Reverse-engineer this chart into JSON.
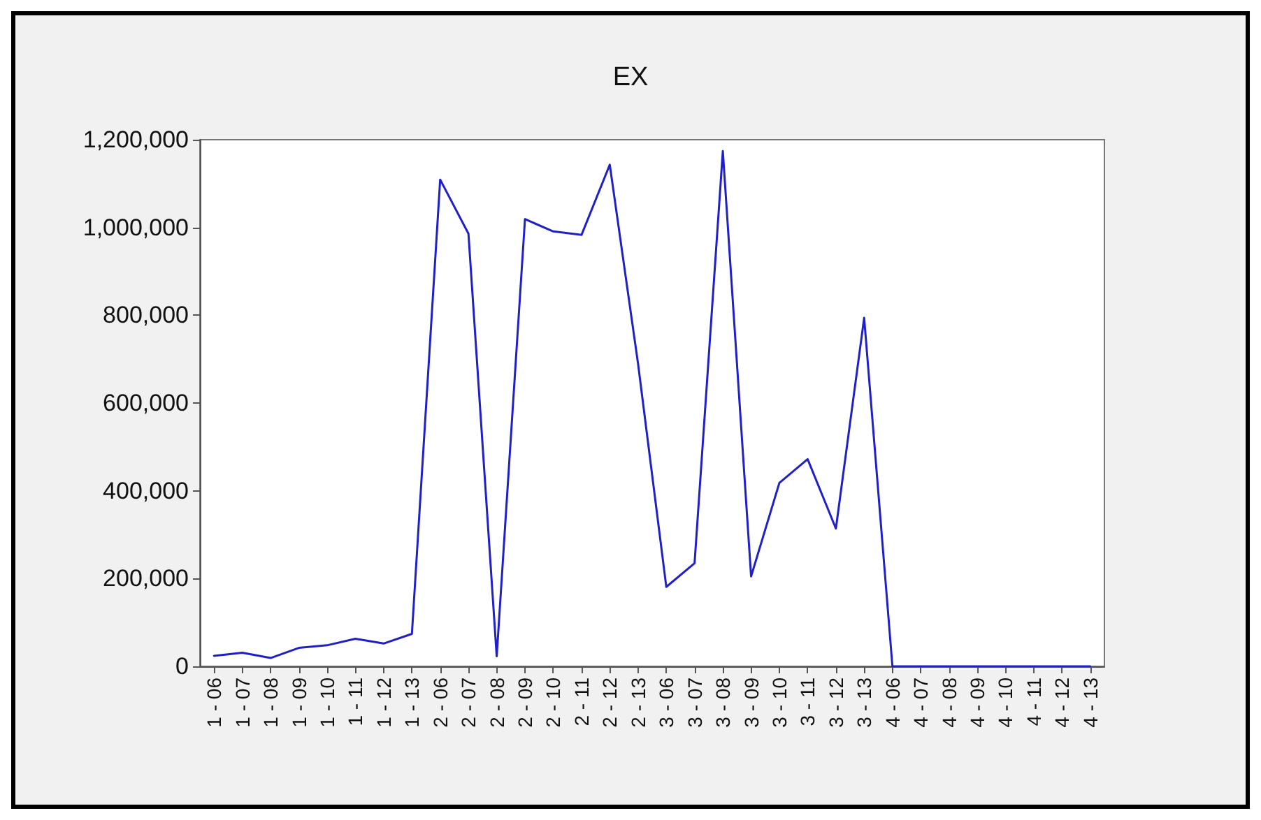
{
  "chart_data": {
    "type": "line",
    "title": "EX",
    "categories": [
      "1 - 06",
      "1 - 07",
      "1 - 08",
      "1 - 09",
      "1 - 10",
      "1 - 11",
      "1 - 12",
      "1 - 13",
      "2 - 06",
      "2 - 07",
      "2 - 08",
      "2 - 09",
      "2 - 10",
      "2 - 11",
      "2 - 12",
      "2 - 13",
      "3 - 06",
      "3 - 07",
      "3 - 08",
      "3 - 09",
      "3 - 10",
      "3 - 11",
      "3 - 12",
      "3 - 13",
      "4 - 06",
      "4 - 07",
      "4 - 08",
      "4 - 09",
      "4 - 10",
      "4 - 11",
      "4 - 12",
      "4 - 13"
    ],
    "series": [
      {
        "color": "#2020c8",
        "values": [
          24000,
          31000,
          19000,
          42000,
          48000,
          63000,
          52000,
          74000,
          1109000,
          986000,
          23000,
          1019000,
          991000,
          983000,
          1143000,
          690000,
          181000,
          235000,
          1174000,
          205000,
          418000,
          472000,
          314000,
          794000,
          0,
          0,
          0,
          0,
          0,
          0,
          0,
          0
        ]
      }
    ],
    "ylim": [
      0,
      1200000
    ],
    "yticks": [
      0,
      {
        "value": 200000,
        "label": "200,000"
      },
      {
        "value": 400000,
        "label": "400,000"
      },
      {
        "value": 600000,
        "label": "600,000"
      },
      {
        "value": 800000,
        "label": "800,000"
      },
      {
        "value": 1000000,
        "label": "1,000,000"
      },
      {
        "value": 1200000,
        "label": "1,200,000"
      }
    ],
    "grid": false,
    "marker": "none",
    "line_style": "solid"
  }
}
